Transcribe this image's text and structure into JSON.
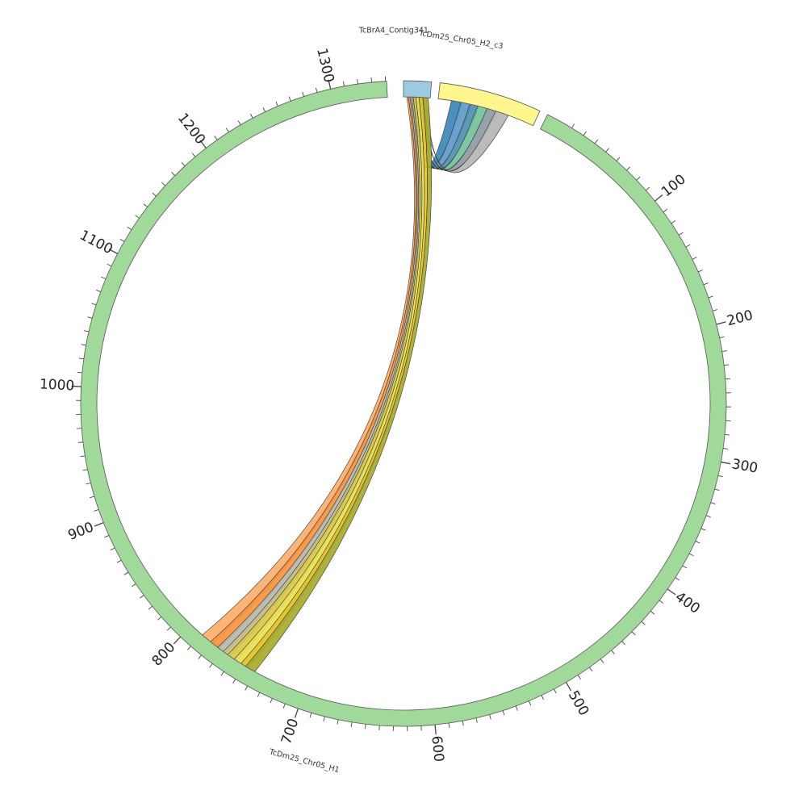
{
  "colors": {
    "contig_segment": "#9ecae1",
    "h2_segment": "#fff68f",
    "h1_segment": "#a1d99b",
    "segment_stroke": "#555555",
    "tick": "#444444"
  },
  "segments": [
    {
      "id": "contig341",
      "label": "TcBrA4_Contig341",
      "color": "#9ecae1"
    },
    {
      "id": "h2c3",
      "label": "TcDm25_Chr05_H2_c3",
      "color": "#fff68f"
    },
    {
      "id": "h1",
      "label": "TcDm25_Chr05_H1",
      "color": "#a1d99b"
    }
  ],
  "ticks": {
    "labels": [
      "100",
      "200",
      "300",
      "400",
      "500",
      "600",
      "700",
      "800",
      "900",
      "1000",
      "1100",
      "1200",
      "1300"
    ]
  },
  "ribbons": [
    {
      "from": "contig341",
      "to": "h2c3",
      "colors": [
        "#3d87b8",
        "#5d9ac9",
        "#4f8fb0",
        "#74c19b",
        "#8e9aa3",
        "#b5b5b5"
      ]
    },
    {
      "from": "contig341",
      "to": "h1",
      "colors": [
        "#fdae6b",
        "#f7943f",
        "#b9b7ac",
        "#c8c08a",
        "#d8c948",
        "#eadf55",
        "#e6c62a",
        "#a7aa2c"
      ]
    }
  ]
}
